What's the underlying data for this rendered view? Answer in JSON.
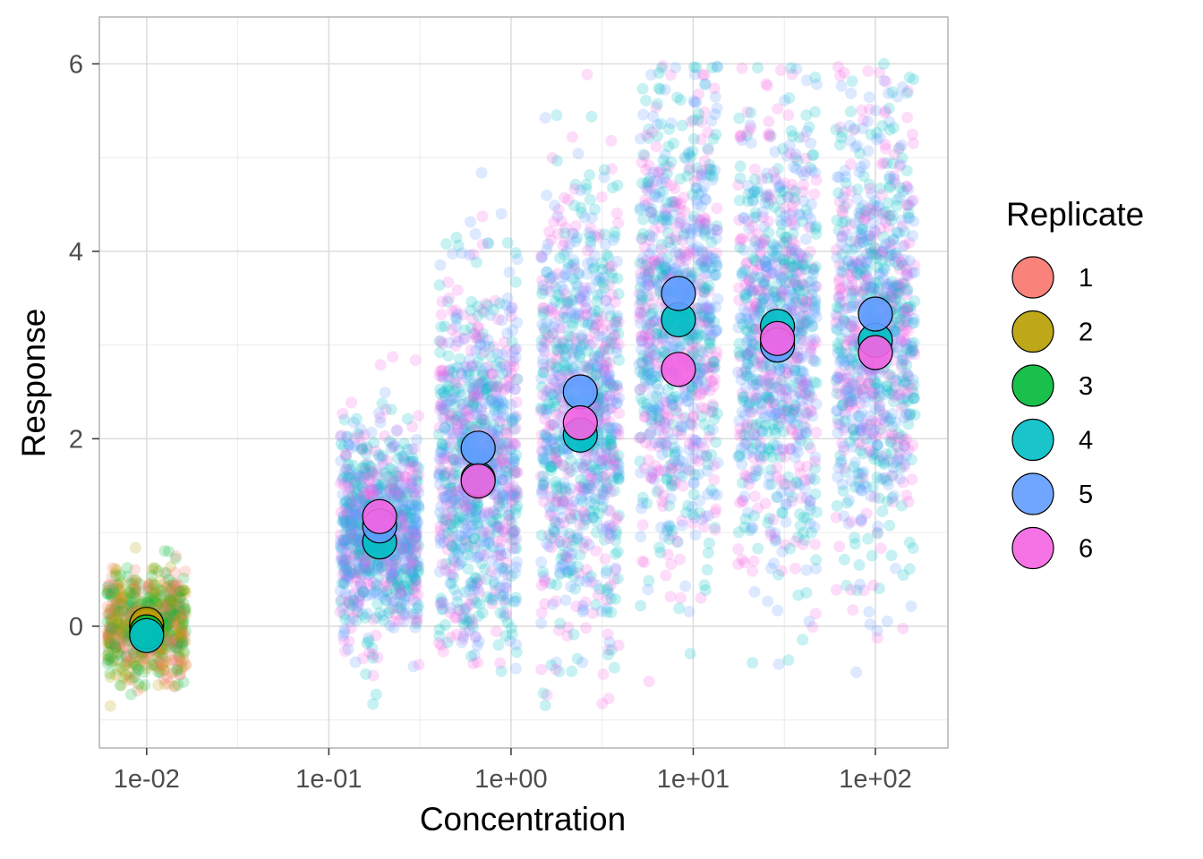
{
  "chart_data": {
    "type": "scatter",
    "title": "",
    "xlabel": "Concentration",
    "ylabel": "Response",
    "x_scale": "log10",
    "xlim": [
      0.0055,
      250
    ],
    "ylim": [
      -1.3,
      6.5
    ],
    "x_ticks": [
      {
        "value": 0.01,
        "label": "1e-02"
      },
      {
        "value": 0.1,
        "label": "1e-01"
      },
      {
        "value": 1,
        "label": "1e+00"
      },
      {
        "value": 10,
        "label": "1e+01"
      },
      {
        "value": 100,
        "label": "1e+02"
      }
    ],
    "y_ticks": [
      {
        "value": 0,
        "label": "0"
      },
      {
        "value": 2,
        "label": "2"
      },
      {
        "value": 4,
        "label": "4"
      },
      {
        "value": 6,
        "label": "6"
      }
    ],
    "grid": true,
    "legend": {
      "title": "Replicate",
      "placement": "right",
      "entries": [
        {
          "label": "1",
          "color": "#F8766D"
        },
        {
          "label": "2",
          "color": "#B79F00"
        },
        {
          "label": "3",
          "color": "#00BA38"
        },
        {
          "label": "4",
          "color": "#00BFC4"
        },
        {
          "label": "5",
          "color": "#619CFF"
        },
        {
          "label": "6",
          "color": "#F564E3"
        }
      ]
    },
    "series": [
      {
        "name": "1",
        "color": "#F8766D",
        "points": [
          {
            "x": 0.01,
            "y": 0.0
          }
        ]
      },
      {
        "name": "2",
        "color": "#B79F00",
        "points": [
          {
            "x": 0.01,
            "y": 0.02
          }
        ]
      },
      {
        "name": "3",
        "color": "#00BA38",
        "points": [
          {
            "x": 0.01,
            "y": -0.06
          }
        ]
      },
      {
        "name": "4",
        "color": "#00BFC4",
        "points": [
          {
            "x": 0.01,
            "y": -0.1
          },
          {
            "x": 0.19,
            "y": 0.9
          },
          {
            "x": 0.66,
            "y": 1.57
          },
          {
            "x": 2.4,
            "y": 2.04
          },
          {
            "x": 8.3,
            "y": 3.27
          },
          {
            "x": 29,
            "y": 3.2
          },
          {
            "x": 100,
            "y": 3.05
          }
        ]
      },
      {
        "name": "5",
        "color": "#619CFF",
        "points": [
          {
            "x": 0.19,
            "y": 1.07
          },
          {
            "x": 0.66,
            "y": 1.9
          },
          {
            "x": 2.4,
            "y": 2.5
          },
          {
            "x": 8.3,
            "y": 3.55
          },
          {
            "x": 29,
            "y": 3.0
          },
          {
            "x": 100,
            "y": 3.33
          }
        ]
      },
      {
        "name": "6",
        "color": "#F564E3",
        "points": [
          {
            "x": 0.19,
            "y": 1.17
          },
          {
            "x": 0.66,
            "y": 1.55
          },
          {
            "x": 2.4,
            "y": 2.17
          },
          {
            "x": 8.3,
            "y": 2.74
          },
          {
            "x": 29,
            "y": 3.07
          },
          {
            "x": 100,
            "y": 2.92
          }
        ]
      }
    ],
    "raw_clouds": [
      {
        "x": 0.01,
        "center": 0.0,
        "spread": 0.3,
        "ymin": -0.95,
        "ymax": 1.85,
        "colors": [
          "#F8766D",
          "#B79F00",
          "#00BA38"
        ]
      },
      {
        "x": 0.19,
        "center": 1.0,
        "spread": 0.55,
        "ymin": -1.0,
        "ymax": 5.45,
        "colors": [
          "#00BFC4",
          "#619CFF",
          "#F564E3"
        ]
      },
      {
        "x": 0.66,
        "center": 1.7,
        "spread": 0.95,
        "ymin": -0.5,
        "ymax": 5.6,
        "colors": [
          "#00BFC4",
          "#619CFF",
          "#F564E3"
        ]
      },
      {
        "x": 2.4,
        "center": 2.25,
        "spread": 1.15,
        "ymin": -0.85,
        "ymax": 6.0,
        "colors": [
          "#00BFC4",
          "#619CFF",
          "#F564E3"
        ]
      },
      {
        "x": 8.3,
        "center": 3.2,
        "spread": 1.2,
        "ymin": -0.7,
        "ymax": 6.0,
        "colors": [
          "#00BFC4",
          "#619CFF",
          "#F564E3"
        ]
      },
      {
        "x": 29,
        "center": 3.1,
        "spread": 1.15,
        "ymin": -0.45,
        "ymax": 6.0,
        "colors": [
          "#00BFC4",
          "#619CFF",
          "#F564E3"
        ]
      },
      {
        "x": 100,
        "center": 3.1,
        "spread": 1.15,
        "ymin": -0.65,
        "ymax": 6.0,
        "colors": [
          "#00BFC4",
          "#619CFF",
          "#F564E3"
        ]
      }
    ]
  }
}
